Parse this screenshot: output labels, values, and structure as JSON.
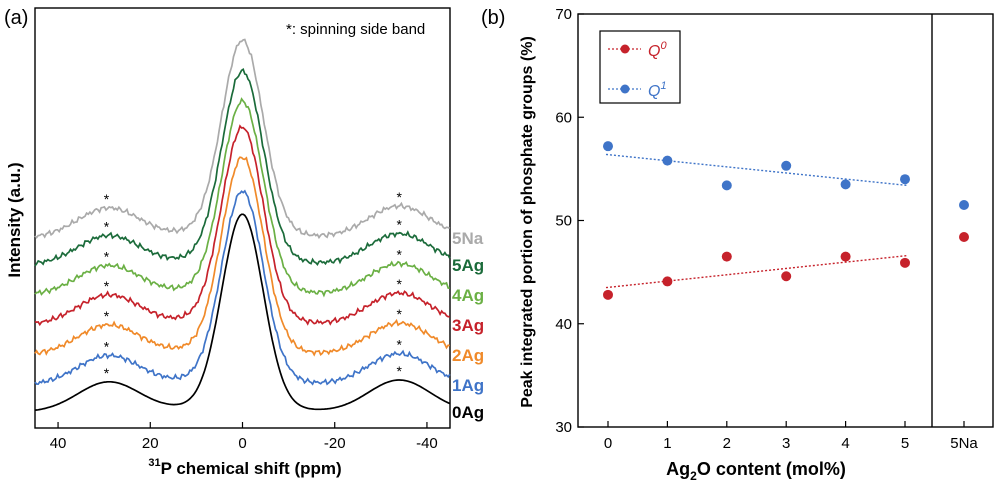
{
  "chart_data": [
    {
      "type": "line",
      "panel_label": "(a)",
      "xlabel_sup": "31",
      "xlabel": "P chemical shift (ppm)",
      "ylabel": "Intensity (a.u.)",
      "xlim": [
        45,
        -45
      ],
      "xticks": [
        "40",
        "20",
        "0",
        "-20",
        "-40"
      ],
      "xtick_values": [
        40,
        20,
        0,
        -20,
        -40
      ],
      "annotation": "*: spinning side band",
      "series": [
        {
          "name": "0Ag",
          "color": "#000000"
        },
        {
          "name": "1Ag",
          "color": "#3f74c8"
        },
        {
          "name": "2Ag",
          "color": "#f08a2a"
        },
        {
          "name": "3Ag",
          "color": "#c6222b"
        },
        {
          "name": "4Ag",
          "color": "#6bb045"
        },
        {
          "name": "5Ag",
          "color": "#1b6b3a"
        },
        {
          "name": "5Na",
          "color": "#aaaaaa"
        }
      ]
    },
    {
      "type": "scatter",
      "panel_label": "(b)",
      "xlabel_main": "Ag",
      "xlabel_sub": "2",
      "xlabel_rest": "O content (mol%)",
      "ylabel": "Peak integrated portion of phosphate groups (%)",
      "ylim": [
        30,
        70
      ],
      "yticks": [
        "30",
        "40",
        "50",
        "60",
        "70"
      ],
      "ytick_values": [
        30,
        40,
        50,
        60,
        70
      ],
      "categories": [
        "0",
        "1",
        "2",
        "3",
        "4",
        "5",
        "5Na"
      ],
      "series": [
        {
          "name": "Q",
          "superscript": "0",
          "color": "#c6222b",
          "values": [
            42.8,
            44.1,
            46.5,
            44.6,
            46.5,
            45.9,
            48.4
          ],
          "trend": [
            43.5,
            46.6
          ]
        },
        {
          "name": "Q",
          "superscript": "1",
          "color": "#3f74c8",
          "values": [
            57.2,
            55.8,
            53.4,
            55.3,
            53.5,
            54.0,
            51.5
          ],
          "trend": [
            56.4,
            53.4
          ]
        }
      ]
    }
  ]
}
